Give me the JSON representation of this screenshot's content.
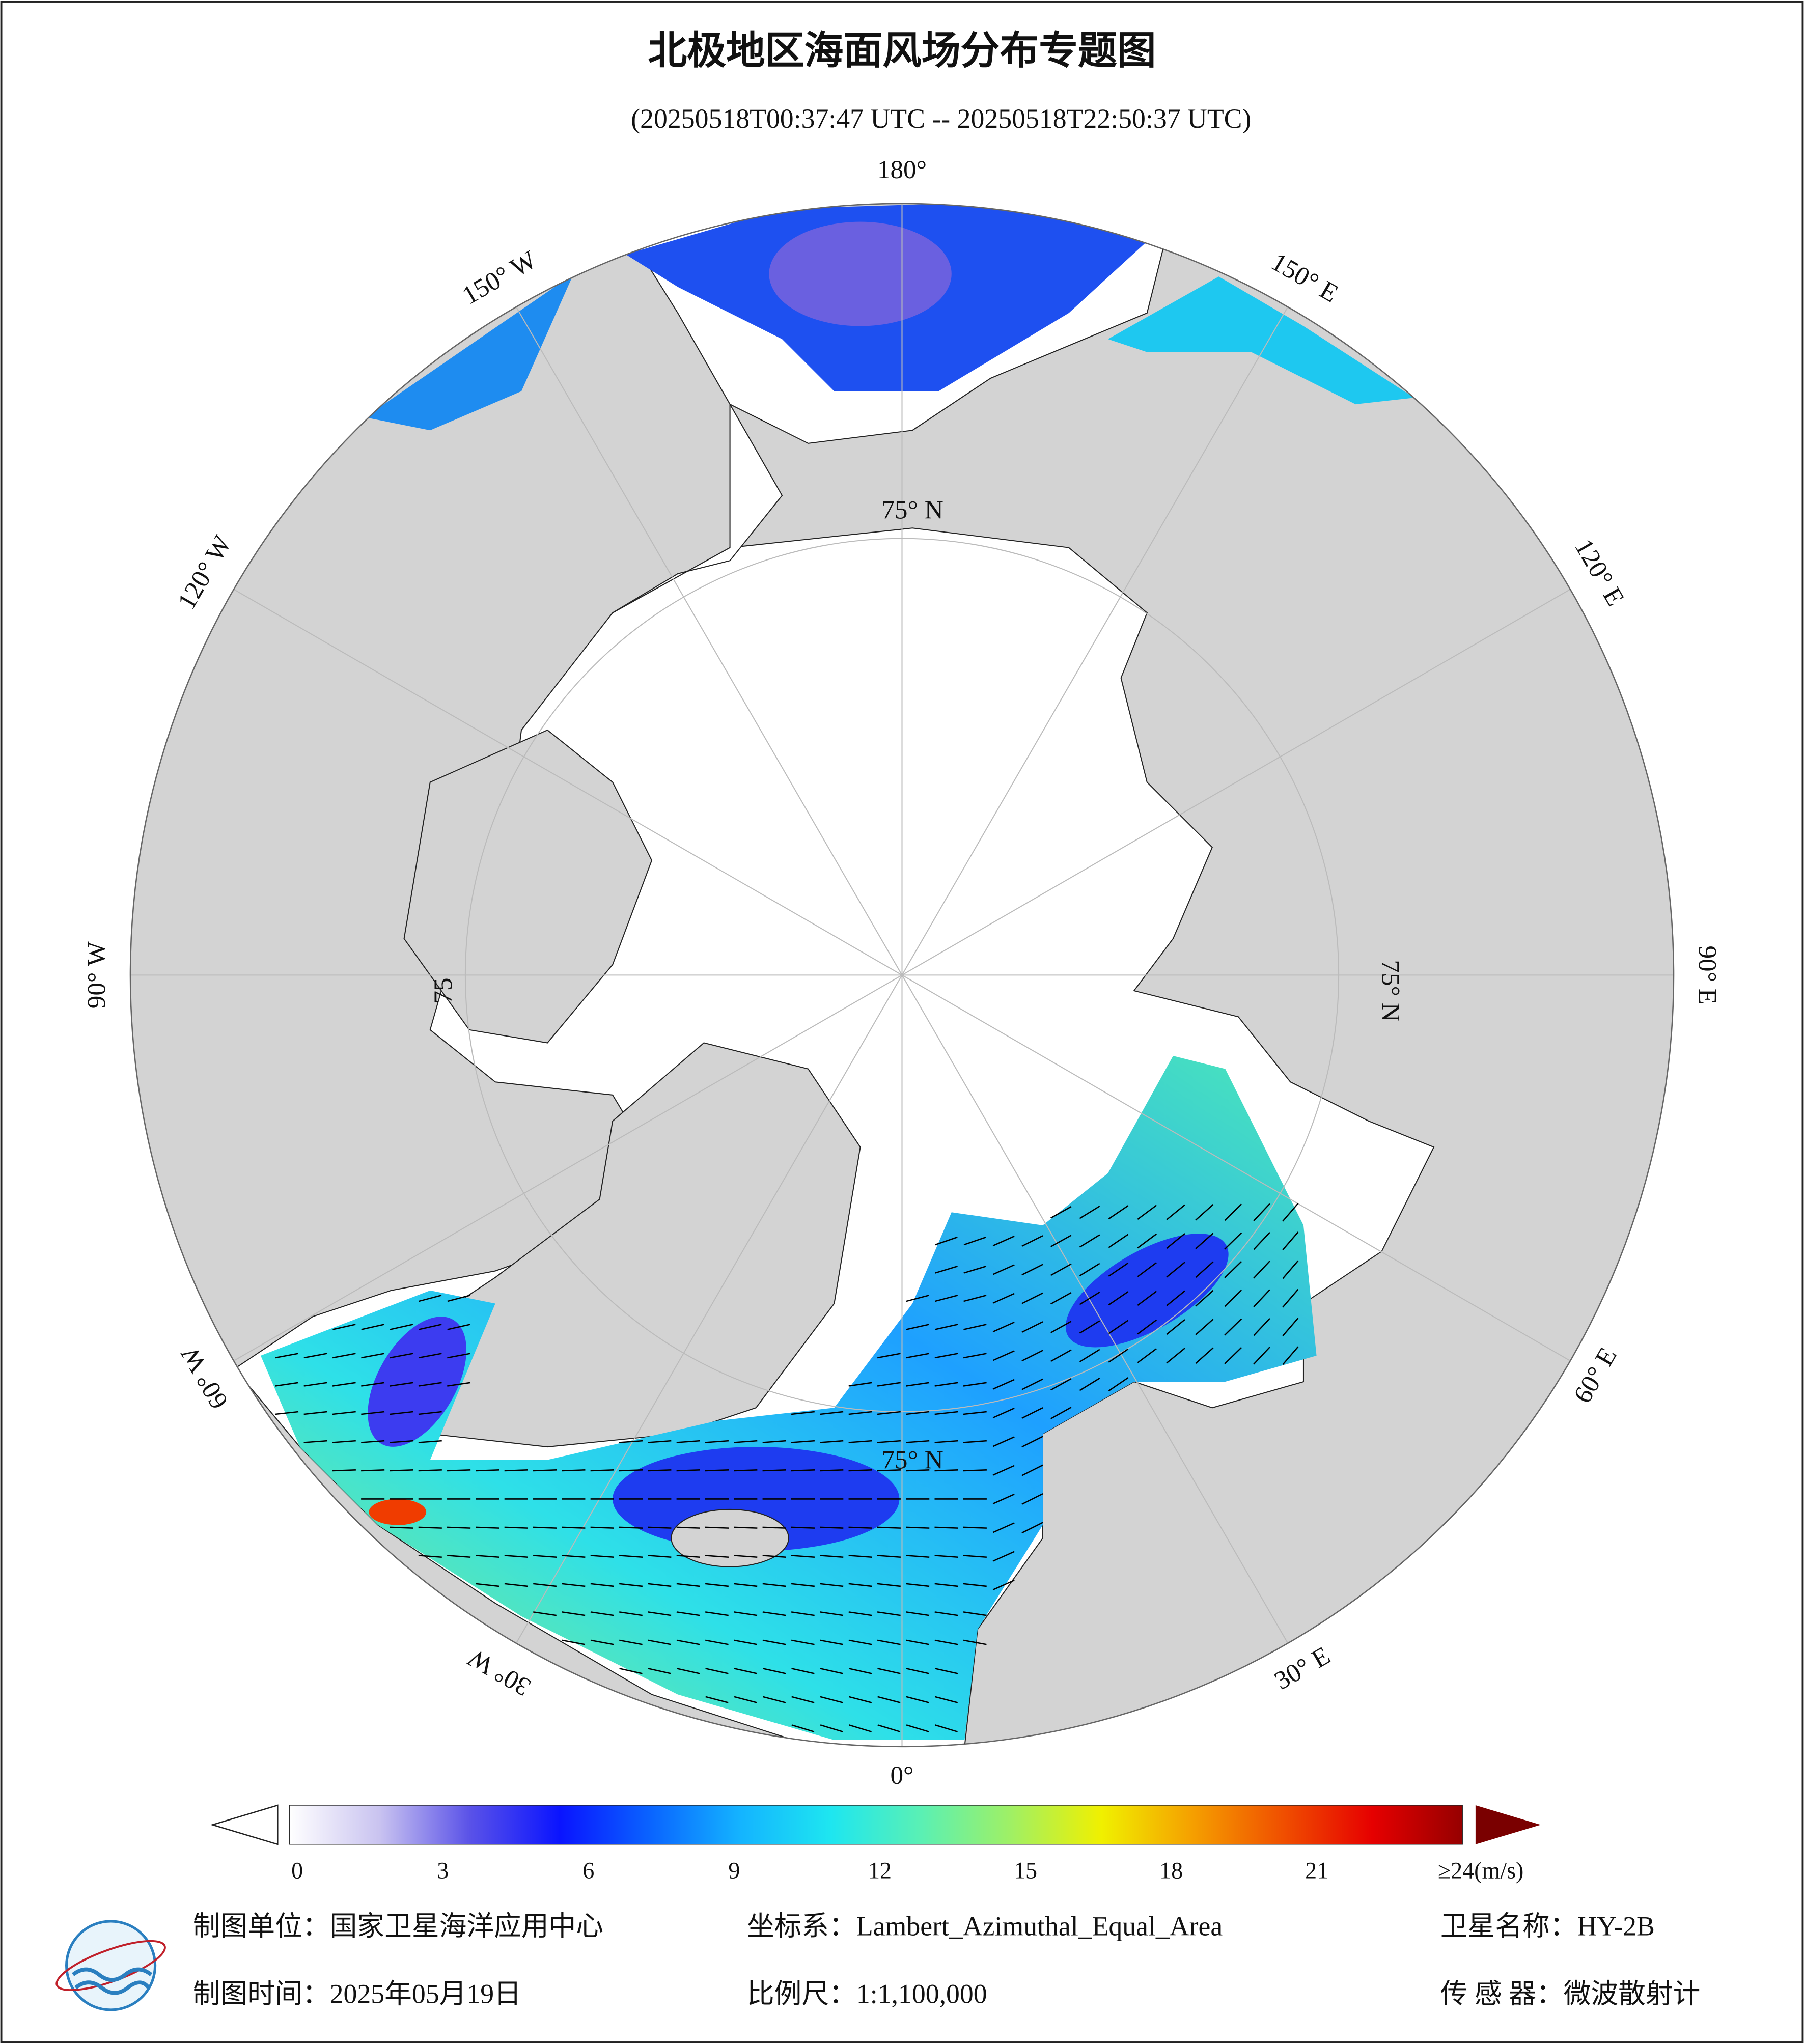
{
  "title": "北极地区海面风场分布专题图",
  "subtitle": "(20250518T00:37:47 UTC -- 20250518T22:50:37 UTC)",
  "map": {
    "longitude_labels": [
      "180°",
      "150° E",
      "120° E",
      "90° E",
      "60° E",
      "30° E",
      "0°",
      "30° W",
      "60° W",
      "90° W",
      "120° W",
      "150° W"
    ],
    "latitude_labels": [
      "75° N",
      "75° N",
      "75° N",
      "75"
    ]
  },
  "colorbar": {
    "lim": [
      0,
      24
    ],
    "ticks": [
      0,
      3,
      6,
      9,
      12,
      15,
      18,
      21,
      {
        "value": 24,
        "label": "≥24(m/s)"
      }
    ],
    "colors": [
      "#ffffff",
      "#c9c3f0",
      "#5a52e8",
      "#0a14ff",
      "#0a64ff",
      "#14b4ff",
      "#1ee6f0",
      "#5af0b4",
      "#a0f064",
      "#f0f000",
      "#f5a000",
      "#f05000",
      "#e60000",
      "#960000"
    ]
  },
  "footer": {
    "unit": "制图单位：国家卫星海洋应用中心",
    "coordinate_system": "坐标系：Lambert_Azimuthal_Equal_Area",
    "satellite": "卫星名称：HY-2B",
    "date": "制图时间：2025年05月19日",
    "scale": "比例尺：1:1,100,000",
    "sensor": "传 感 器：微波散射计"
  }
}
